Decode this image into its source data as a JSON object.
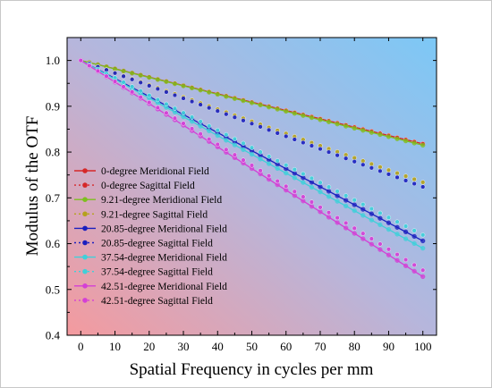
{
  "chart_data": {
    "type": "line",
    "title": "",
    "xlabel": "Spatial Frequency in cycles per mm",
    "ylabel": "Modulus of the OTF",
    "xlim": [
      -4,
      104
    ],
    "ylim": [
      0.4,
      1.05
    ],
    "xticks": [
      0,
      10,
      20,
      30,
      40,
      50,
      60,
      70,
      80,
      90,
      100
    ],
    "yticks": [
      0.4,
      0.5,
      0.6,
      0.7,
      0.8,
      0.9,
      1.0
    ],
    "xtick_labels": [
      "0",
      "10",
      "20",
      "30",
      "40",
      "50",
      "60",
      "70",
      "80",
      "90",
      "100"
    ],
    "ytick_labels": [
      "0.4",
      "0.5",
      "0.6",
      "0.7",
      "0.8",
      "0.9",
      "1.0"
    ],
    "grid": false,
    "legend_position": "left-center",
    "background": "gradient pink (bottom-left) to light blue (top-right)",
    "x": [
      0,
      2.5,
      5,
      7.5,
      10,
      12.5,
      15,
      17.5,
      20,
      22.5,
      25,
      27.5,
      30,
      32.5,
      35,
      37.5,
      40,
      42.5,
      45,
      47.5,
      50,
      52.5,
      55,
      57.5,
      60,
      62.5,
      65,
      67.5,
      70,
      72.5,
      75,
      77.5,
      80,
      82.5,
      85,
      87.5,
      90,
      92.5,
      95,
      97.5,
      100
    ],
    "series": [
      {
        "name": "0-degree Meridional Field",
        "color": "#d62728",
        "line": "solid",
        "end_value": 0.818
      },
      {
        "name": "0-degree Sagittal Field",
        "color": "#d62728",
        "line": "dotted",
        "end_value": 0.818
      },
      {
        "name": "9.21-degree Meridional Field",
        "color": "#7dbf1f",
        "line": "solid",
        "end_value": 0.815
      },
      {
        "name": "9.21-degree Sagittal Field",
        "color": "#b5a21c",
        "line": "dotted",
        "end_value": 0.734
      },
      {
        "name": "20.85-degree Meridional Field",
        "color": "#1a1fbf",
        "line": "solid",
        "end_value": 0.606
      },
      {
        "name": "20.85-degree Sagittal Field",
        "color": "#1a1fbf",
        "line": "dotted",
        "end_value": 0.724
      },
      {
        "name": "37.54-degree Meridional Field",
        "color": "#3fd0d9",
        "line": "solid",
        "end_value": 0.59
      },
      {
        "name": "37.54-degree Sagittal Field",
        "color": "#3fd0d9",
        "line": "dotted",
        "end_value": 0.619
      },
      {
        "name": "42.51-degree Meridional Field",
        "color": "#d43fd6",
        "line": "solid",
        "end_value": 0.528
      },
      {
        "name": "42.51-degree Sagittal Field",
        "color": "#d43fd6",
        "line": "dotted",
        "end_value": 0.542
      }
    ]
  }
}
